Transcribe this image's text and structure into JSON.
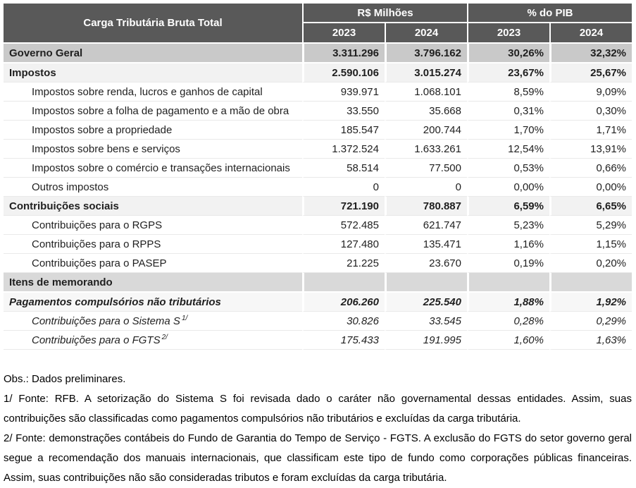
{
  "table": {
    "title": "Carga Tributária Bruta Total",
    "groups": {
      "money": "R$ Milhões",
      "pib": "% do PIB"
    },
    "years": [
      "2023",
      "2024",
      "2023",
      "2024"
    ],
    "rows": [
      {
        "label": "Governo Geral",
        "values": [
          "3.311.296",
          "3.796.162",
          "30,26%",
          "32,32%"
        ]
      },
      {
        "label": "Impostos",
        "values": [
          "2.590.106",
          "3.015.274",
          "23,67%",
          "25,67%"
        ]
      },
      {
        "label": "Impostos sobre renda, lucros e ganhos de capital",
        "values": [
          "939.971",
          "1.068.101",
          "8,59%",
          "9,09%"
        ]
      },
      {
        "label": "Impostos sobre a folha de pagamento e a mão de obra",
        "values": [
          "33.550",
          "35.668",
          "0,31%",
          "0,30%"
        ]
      },
      {
        "label": "Impostos sobre a propriedade",
        "values": [
          "185.547",
          "200.744",
          "1,70%",
          "1,71%"
        ]
      },
      {
        "label": "Impostos sobre bens e serviços",
        "values": [
          "1.372.524",
          "1.633.261",
          "12,54%",
          "13,91%"
        ]
      },
      {
        "label": "Impostos sobre o comércio e transações internacionais",
        "values": [
          "58.514",
          "77.500",
          "0,53%",
          "0,66%"
        ]
      },
      {
        "label": "Outros impostos",
        "values": [
          "0",
          "0",
          "0,00%",
          "0,00%"
        ]
      },
      {
        "label": "Contribuições sociais",
        "values": [
          "721.190",
          "780.887",
          "6,59%",
          "6,65%"
        ]
      },
      {
        "label": "Contribuições para o RGPS",
        "values": [
          "572.485",
          "621.747",
          "5,23%",
          "5,29%"
        ]
      },
      {
        "label": "Contribuições para o RPPS",
        "values": [
          "127.480",
          "135.471",
          "1,16%",
          "1,15%"
        ]
      },
      {
        "label": "Contribuições para o PASEP",
        "values": [
          "21.225",
          "23.670",
          "0,19%",
          "0,20%"
        ]
      },
      {
        "label": "Itens de memorando",
        "values": [
          "",
          "",
          "",
          ""
        ]
      },
      {
        "label": "Pagamentos compulsórios não tributários",
        "values": [
          "206.260",
          "225.540",
          "1,88%",
          "1,92%"
        ]
      },
      {
        "label": "Contribuições para o Sistema S",
        "sup": "1/",
        "values": [
          "30.826",
          "33.545",
          "0,28%",
          "0,29%"
        ]
      },
      {
        "label": "Contribuições para o FGTS",
        "sup": "2/",
        "values": [
          "175.433",
          "191.995",
          "1,60%",
          "1,63%"
        ]
      }
    ]
  },
  "notes": {
    "obs": "Obs.: Dados preliminares.",
    "note1": "1/ Fonte: RFB. A setorização do Sistema S foi revisada dado o caráter não governamental dessas entidades. Assim, suas contribuições são classificadas como pagamentos compulsórios não tributários e excluídas da carga tributária.",
    "note2": "2/ Fonte: demonstrações contábeis do Fundo de Garantia do Tempo de Serviço - FGTS. A exclusão do FGTS do setor governo geral segue a recomendação dos manuais internacionais, que classificam este tipo de fundo como corporações públicas financeiras. Assim, suas contribuições não são consideradas tributos e foram excluídas da carga tributária."
  },
  "colors": {
    "header_bg": "#595959",
    "total_row_bg": "#c9c9c9",
    "section_row_bg": "#f2f2f2",
    "memo_header_bg": "#d9d9d9"
  }
}
